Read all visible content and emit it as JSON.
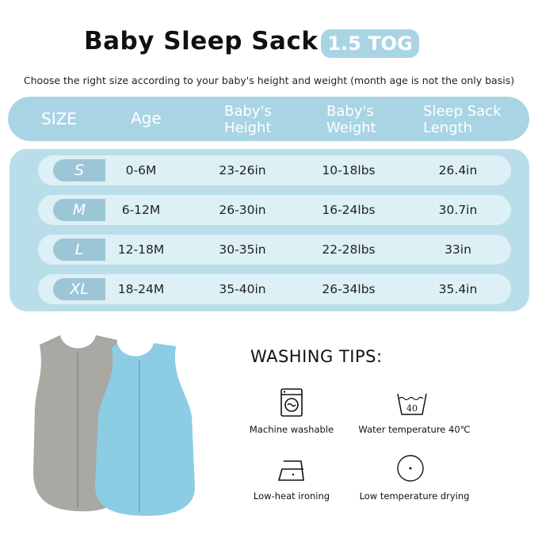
{
  "title": "Baby Sleep Sack",
  "tog_badge": "1.5 TOG",
  "subtitle": "Choose the right size according to your baby's height and weight (month age is not the only basis)",
  "table": {
    "headers": {
      "size": "SIZE",
      "age": "Age",
      "height": [
        "Baby's",
        "Height"
      ],
      "weight": [
        "Baby's",
        "Weight"
      ],
      "length": [
        "Sleep Sack",
        "Length"
      ]
    },
    "rows": [
      {
        "size": "S",
        "age": "0-6M",
        "height": "23-26in",
        "weight": "10-18lbs",
        "length": "26.4in"
      },
      {
        "size": "M",
        "age": "6-12M",
        "height": "26-30in",
        "weight": "16-24lbs",
        "length": "30.7in"
      },
      {
        "size": "L",
        "age": "12-18M",
        "height": "30-35in",
        "weight": "22-28lbs",
        "length": "33in"
      },
      {
        "size": "XL",
        "age": "18-24M",
        "height": "35-40in",
        "weight": "26-34lbs",
        "length": "35.4in"
      }
    ]
  },
  "washing": {
    "title": "WASHING TIPS:",
    "tips": [
      {
        "icon": "washing-machine-icon",
        "label": "Machine washable"
      },
      {
        "icon": "wash-40-icon",
        "label": "Water temperature 40℃",
        "temp": "40"
      },
      {
        "icon": "iron-low-heat-icon",
        "label": "Low-heat ironing"
      },
      {
        "icon": "tumble-dry-low-icon",
        "label": "Low temperature drying"
      }
    ]
  },
  "colors": {
    "accent": "#a9d4e4",
    "panel": "#b9deea",
    "row": "#dcf0f6",
    "badge": "#9cc6d6",
    "gray_sack": "#a9a8a3",
    "blue_sack": "#8ccde4"
  }
}
